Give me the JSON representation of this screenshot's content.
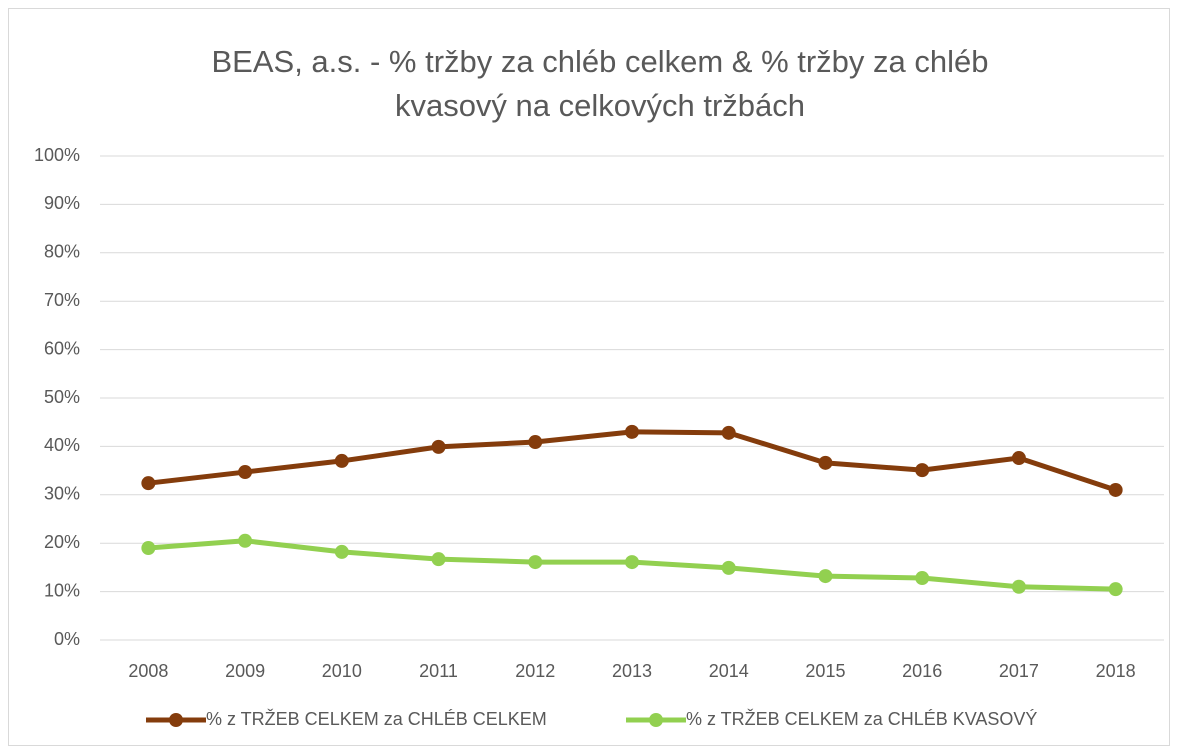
{
  "chart_data": {
    "type": "line",
    "title": "BEAS, a.s. - % tržby za chléb celkem & % tržby za chléb kvasový na celkových tržbách",
    "categories": [
      "2008",
      "2009",
      "2010",
      "2011",
      "2012",
      "2013",
      "2014",
      "2015",
      "2016",
      "2017",
      "2018"
    ],
    "series": [
      {
        "name": "% z TRŽEB CELKEM za CHLÉB CELKEM",
        "color": "#843c0c",
        "values": [
          32.4,
          34.7,
          37.0,
          39.9,
          40.9,
          43.0,
          42.8,
          36.6,
          35.1,
          37.6,
          31.0
        ]
      },
      {
        "name": "% z TRŽEB CELKEM za CHLÉB KVASOVÝ",
        "color": "#92d050",
        "values": [
          19.0,
          20.5,
          18.2,
          16.7,
          16.1,
          16.1,
          14.9,
          13.2,
          12.8,
          11.0,
          10.5
        ]
      }
    ],
    "ylim": [
      0,
      100
    ],
    "yticks": [
      {
        "value": 0,
        "label": "0%"
      },
      {
        "value": 10,
        "label": "10%"
      },
      {
        "value": 20,
        "label": "20%"
      },
      {
        "value": 30,
        "label": "30%"
      },
      {
        "value": 40,
        "label": "40%"
      },
      {
        "value": 50,
        "label": "50%"
      },
      {
        "value": 60,
        "label": "60%"
      },
      {
        "value": 70,
        "label": "70%"
      },
      {
        "value": 80,
        "label": "80%"
      },
      {
        "value": 90,
        "label": "90%"
      },
      {
        "value": 100,
        "label": "100%"
      }
    ],
    "grid": true,
    "legend": "bottom"
  }
}
